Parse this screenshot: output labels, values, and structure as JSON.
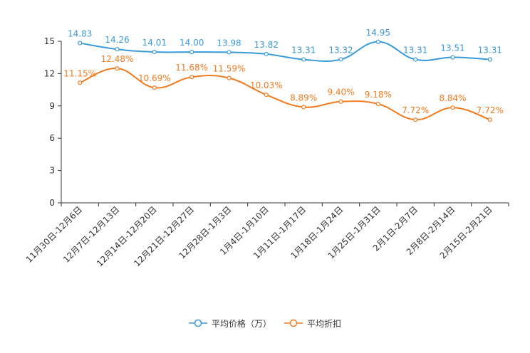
{
  "chart_data": {
    "type": "line",
    "categories": [
      "11月30日-12月6日",
      "12月7日-12月13日",
      "12月14日-12月20日",
      "12月21日-12月27日",
      "12月28日-1月3日",
      "1月4日-1月10日",
      "1月11日-1月17日",
      "1月18日-1月24日",
      "1月25日-1月31日",
      "2月1日-2月7日",
      "2月8日-2月14日",
      "2月15日-2月21日"
    ],
    "series": [
      {
        "name": "平均价格（万）",
        "color": "#3a9ad9",
        "values": [
          14.83,
          14.26,
          14.01,
          14.0,
          13.98,
          13.82,
          13.31,
          13.32,
          14.95,
          13.31,
          13.51,
          13.31
        ],
        "labels": [
          "14.83",
          "14.26",
          "14.01",
          "14.00",
          "13.98",
          "13.82",
          "13.31",
          "13.32",
          "14.95",
          "13.31",
          "13.51",
          "13.31"
        ]
      },
      {
        "name": "平均折扣",
        "color": "#f27b1f",
        "values": [
          11.15,
          12.48,
          10.69,
          11.68,
          11.59,
          10.03,
          8.89,
          9.4,
          9.18,
          7.72,
          8.84,
          7.72
        ],
        "labels": [
          "11.15%",
          "12.48%",
          "10.69%",
          "11.68%",
          "11.59%",
          "10.03%",
          "8.89%",
          "9.40%",
          "9.18%",
          "7.72%",
          "8.84%",
          "7.72%"
        ]
      }
    ],
    "y_ticks": [
      "0",
      "3",
      "6",
      "9",
      "12",
      "15"
    ],
    "ylim": [
      0,
      15
    ],
    "title": "",
    "xlabel": "",
    "ylabel": "",
    "legend_position": "bottom-center",
    "grid": false
  }
}
